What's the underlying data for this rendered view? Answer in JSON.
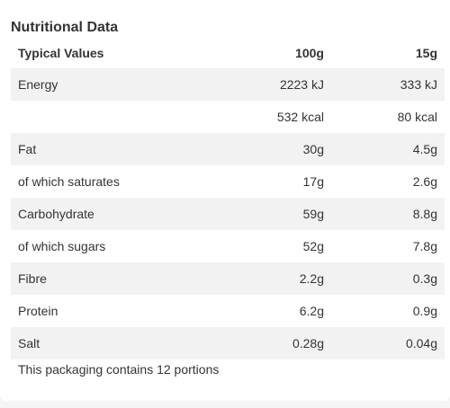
{
  "section_title": "Nutritional Data",
  "table": {
    "columns": [
      "Typical Values",
      "100g",
      "15g"
    ],
    "rows": [
      [
        "Energy",
        "2223 kJ",
        "333 kJ"
      ],
      [
        "",
        "532 kcal",
        "80 kcal"
      ],
      [
        "Fat",
        "30g",
        "4.5g"
      ],
      [
        "of which saturates",
        "17g",
        "2.6g"
      ],
      [
        "Carbohydrate",
        "59g",
        "8.8g"
      ],
      [
        "of which sugars",
        "52g",
        "7.8g"
      ],
      [
        "Fibre",
        "2.2g",
        "0.3g"
      ],
      [
        "Protein",
        "6.2g",
        "0.9g"
      ],
      [
        "Salt",
        "0.28g",
        "0.04g"
      ]
    ]
  },
  "footnote": "This packaging contains 12 portions"
}
